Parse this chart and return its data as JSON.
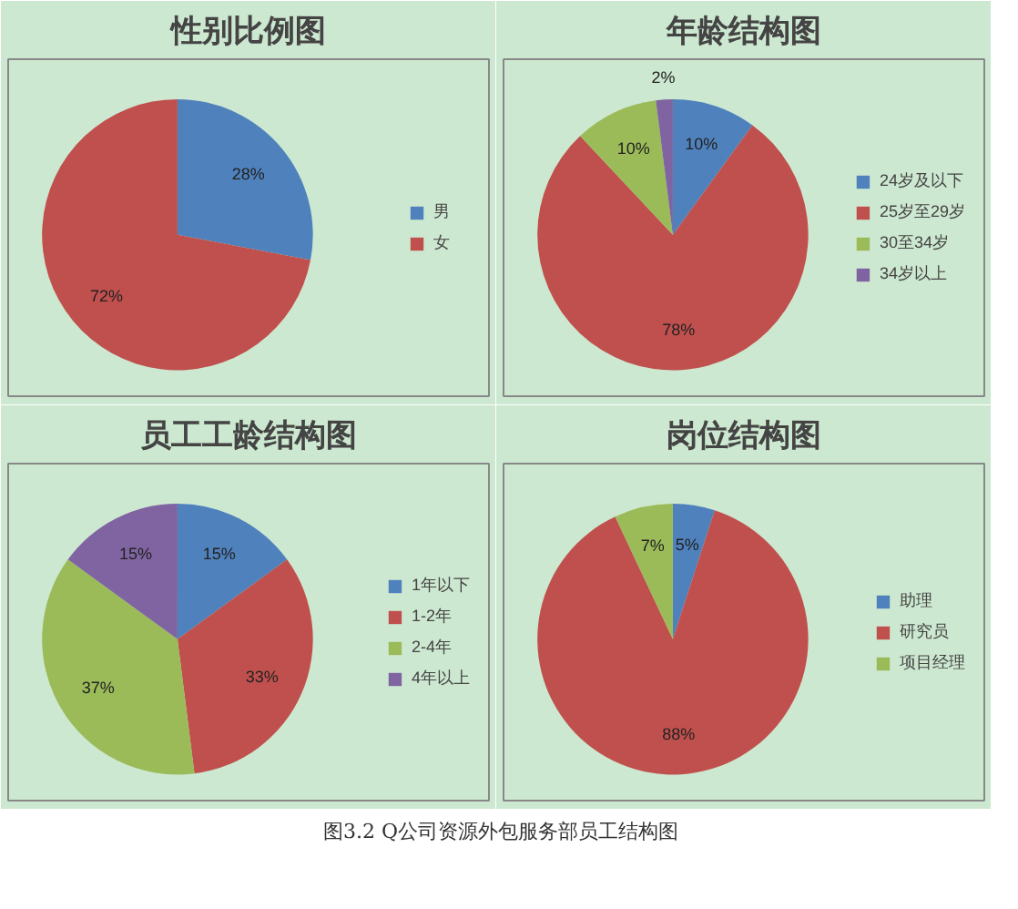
{
  "chart_data": [
    {
      "type": "pie",
      "title": "性别比例图",
      "categories": [
        "男",
        "女"
      ],
      "values": [
        28,
        72
      ],
      "colors": [
        "#4f81bd",
        "#c0504d"
      ],
      "value_labels": [
        "28%",
        "72%"
      ],
      "legend": "right"
    },
    {
      "type": "pie",
      "title": "年龄结构图",
      "categories": [
        "24岁及以下",
        "25岁至29岁",
        "30至34岁",
        "34岁以上"
      ],
      "values": [
        10,
        78,
        10,
        2
      ],
      "colors": [
        "#4f81bd",
        "#c0504d",
        "#9bbb59",
        "#8064a2"
      ],
      "value_labels": [
        "10%",
        "78%",
        "10%",
        "2%"
      ],
      "legend": "right"
    },
    {
      "type": "pie",
      "title": "员工工龄结构图",
      "categories": [
        "1年以下",
        "1-2年",
        "2-4年",
        "4年以上"
      ],
      "values": [
        15,
        33,
        37,
        15
      ],
      "colors": [
        "#4f81bd",
        "#c0504d",
        "#9bbb59",
        "#8064a2"
      ],
      "value_labels": [
        "15%",
        "33%",
        "37%",
        "15%"
      ],
      "legend": "right"
    },
    {
      "type": "pie",
      "title": "岗位结构图",
      "categories": [
        "助理",
        "研究员",
        "项目经理"
      ],
      "values": [
        5,
        88,
        7
      ],
      "colors": [
        "#4f81bd",
        "#c0504d",
        "#9bbb59"
      ],
      "value_labels": [
        "5%",
        "88%",
        "7%"
      ],
      "legend": "right",
      "annotations": [
        "图3.2  Q公司资源外包服务部员工结构图"
      ]
    }
  ]
}
